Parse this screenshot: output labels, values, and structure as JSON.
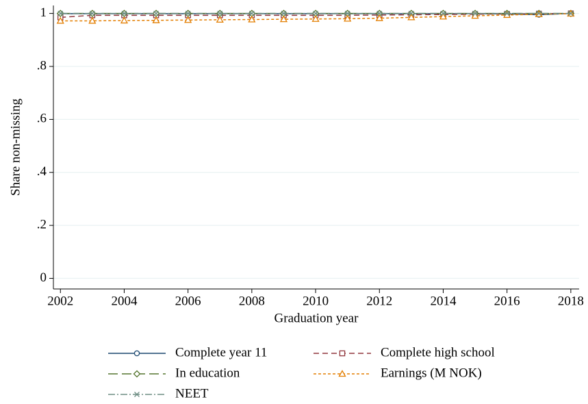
{
  "chart_data": {
    "type": "line",
    "x": [
      2002,
      2003,
      2004,
      2005,
      2006,
      2007,
      2008,
      2009,
      2010,
      2011,
      2012,
      2013,
      2014,
      2015,
      2016,
      2017,
      2018
    ],
    "xlabel": "Graduation year",
    "ylabel": "Share non-missing",
    "xlim": [
      2001.78,
      2018.26
    ],
    "xticks": [
      2002,
      2004,
      2006,
      2008,
      2010,
      2012,
      2014,
      2016,
      2018
    ],
    "ylim": [
      -0.04,
      1.03
    ],
    "yticks": [
      0,
      {
        "value": 0.2,
        "label": ".2"
      },
      {
        "value": 0.4,
        "label": ".4"
      },
      {
        "value": 0.6,
        "label": ".6"
      },
      {
        "value": 0.8,
        "label": ".8"
      },
      1
    ],
    "grid": true,
    "legend": "bottom",
    "series": [
      {
        "name": "Complete year 11",
        "color": "#1a476f",
        "marker": "circle",
        "dash": "solid",
        "values": [
          0.999,
          0.999,
          0.999,
          0.999,
          0.999,
          0.999,
          0.999,
          0.999,
          0.999,
          0.999,
          0.999,
          0.999,
          0.999,
          0.999,
          0.998,
          0.995,
          1.0
        ]
      },
      {
        "name": "Complete high school",
        "color": "#90353b",
        "marker": "square",
        "dash": "dash",
        "values": [
          0.985,
          0.993,
          0.993,
          0.993,
          0.993,
          0.993,
          0.993,
          0.993,
          0.993,
          0.993,
          0.994,
          0.995,
          0.996,
          0.997,
          0.998,
          0.999,
          1.0
        ]
      },
      {
        "name": "In education",
        "color": "#55752f",
        "marker": "diamond",
        "dash": "longdash",
        "values": [
          1.0,
          1.0,
          1.0,
          1.0,
          1.0,
          1.0,
          1.0,
          1.0,
          1.0,
          1.0,
          1.0,
          1.0,
          1.0,
          1.0,
          1.0,
          1.0,
          1.0
        ]
      },
      {
        "name": "Earnings (M NOK)",
        "color": "#e37e00",
        "marker": "triangle",
        "dash": "shortdash",
        "values": [
          0.972,
          0.972,
          0.973,
          0.974,
          0.975,
          0.976,
          0.977,
          0.978,
          0.979,
          0.98,
          0.982,
          0.985,
          0.988,
          0.991,
          0.994,
          0.997,
          0.999
        ]
      },
      {
        "name": "NEET",
        "color": "#6e8e84",
        "marker": "x",
        "dash": "dashdot",
        "values": [
          1.0,
          1.0,
          1.0,
          1.0,
          1.0,
          1.0,
          1.0,
          1.0,
          1.0,
          1.0,
          1.0,
          1.0,
          1.0,
          1.0,
          1.0,
          1.0,
          1.0
        ]
      }
    ]
  }
}
